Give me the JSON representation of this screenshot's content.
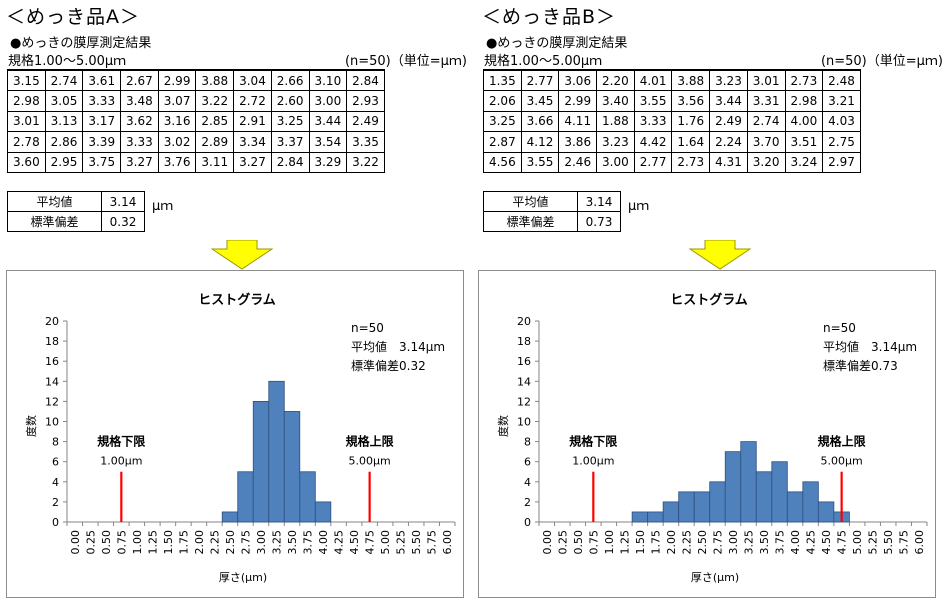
{
  "panels": [
    {
      "id": "a",
      "title": "＜めっき品A＞",
      "subtitle": "●めっきの膜厚測定結果",
      "spec": "規格1.00～5.00μｍ",
      "unit_note": "(n=50)（単位=μｍ)",
      "table": [
        [
          "3.15",
          "2.74",
          "3.61",
          "2.67",
          "2.99",
          "3.88",
          "3.04",
          "2.66",
          "3.10",
          "2.84"
        ],
        [
          "2.98",
          "3.05",
          "3.33",
          "3.48",
          "3.07",
          "3.22",
          "2.72",
          "2.60",
          "3.00",
          "2.93"
        ],
        [
          "3.01",
          "3.13",
          "3.17",
          "3.62",
          "3.16",
          "2.85",
          "2.91",
          "3.25",
          "3.44",
          "2.49"
        ],
        [
          "2.78",
          "2.86",
          "3.39",
          "3.33",
          "3.02",
          "2.89",
          "3.34",
          "3.37",
          "3.54",
          "3.35"
        ],
        [
          "3.60",
          "2.95",
          "3.75",
          "3.27",
          "3.76",
          "3.11",
          "3.27",
          "2.84",
          "3.29",
          "3.22"
        ]
      ],
      "stats": {
        "mean_label": "平均値",
        "mean": "3.14",
        "sd_label": "標準偏差",
        "sd": "0.32",
        "unit": "μｍ"
      },
      "chart_data": {
        "type": "bar",
        "title": "ヒストグラム",
        "xlabel": "厚さ(μm)",
        "ylabel": "度数",
        "categories": [
          "0.00",
          "0.25",
          "0.50",
          "0.75",
          "1.00",
          "1.25",
          "1.50",
          "1.75",
          "2.00",
          "2.25",
          "2.50",
          "2.75",
          "3.00",
          "3.25",
          "3.50",
          "3.75",
          "4.00",
          "4.25",
          "4.50",
          "4.75",
          "5.00",
          "5.25",
          "5.50",
          "5.75",
          "6.00"
        ],
        "values": [
          0,
          0,
          0,
          0,
          0,
          0,
          0,
          0,
          0,
          0,
          1,
          5,
          12,
          14,
          11,
          5,
          2,
          0,
          0,
          0,
          0,
          0,
          0,
          0,
          0
        ],
        "ylim": [
          0,
          20
        ],
        "yticks": [
          0,
          2,
          4,
          6,
          8,
          10,
          12,
          14,
          16,
          18,
          20
        ],
        "grid": false,
        "bar_color": "#4f81bd",
        "limit_color": "#ff0000",
        "info": [
          "n=50",
          "平均値　3.14μm",
          "標準偏差0.32"
        ],
        "lower_limit": {
          "label": "規格下限",
          "value_label": "1.00μm",
          "value": 1.0
        },
        "upper_limit": {
          "label": "規格上限",
          "value_label": "5.00μm",
          "value": 5.0
        }
      }
    },
    {
      "id": "b",
      "title": "＜めっき品B＞",
      "subtitle": "●めっきの膜厚測定結果",
      "spec": "規格1.00～5.00μｍ",
      "unit_note": "(n=50)（単位=μｍ)",
      "table": [
        [
          "1.35",
          "2.77",
          "3.06",
          "2.20",
          "4.01",
          "3.88",
          "3.23",
          "3.01",
          "2.73",
          "2.48"
        ],
        [
          "2.06",
          "3.45",
          "2.99",
          "3.40",
          "3.55",
          "3.56",
          "3.44",
          "3.31",
          "2.98",
          "3.21"
        ],
        [
          "3.25",
          "3.66",
          "4.11",
          "1.88",
          "3.33",
          "1.76",
          "2.49",
          "2.74",
          "4.00",
          "4.03"
        ],
        [
          "2.87",
          "4.12",
          "3.86",
          "3.23",
          "4.42",
          "1.64",
          "2.24",
          "3.70",
          "3.51",
          "2.75"
        ],
        [
          "4.56",
          "3.55",
          "2.46",
          "3.00",
          "2.77",
          "2.73",
          "4.31",
          "3.20",
          "3.24",
          "2.97"
        ]
      ],
      "stats": {
        "mean_label": "平均値",
        "mean": "3.14",
        "sd_label": "標準偏差",
        "sd": "0.73",
        "unit": "μｍ"
      },
      "chart_data": {
        "type": "bar",
        "title": "ヒストグラム",
        "xlabel": "厚さ(μm)",
        "ylabel": "度数",
        "categories": [
          "0.00",
          "0.25",
          "0.50",
          "0.75",
          "1.00",
          "1.25",
          "1.50",
          "1.75",
          "2.00",
          "2.25",
          "2.50",
          "2.75",
          "3.00",
          "3.25",
          "3.50",
          "3.75",
          "4.00",
          "4.25",
          "4.50",
          "4.75",
          "5.00",
          "5.25",
          "5.50",
          "5.75",
          "6.00"
        ],
        "values": [
          0,
          0,
          0,
          0,
          0,
          0,
          1,
          1,
          2,
          3,
          3,
          4,
          7,
          8,
          5,
          6,
          3,
          4,
          2,
          1,
          0,
          0,
          0,
          0,
          0
        ],
        "ylim": [
          0,
          20
        ],
        "yticks": [
          0,
          2,
          4,
          6,
          8,
          10,
          12,
          14,
          16,
          18,
          20
        ],
        "grid": false,
        "bar_color": "#4f81bd",
        "limit_color": "#ff0000",
        "info": [
          "n=50",
          "平均値　3.14μm",
          "標準偏差0.73"
        ],
        "lower_limit": {
          "label": "規格下限",
          "value_label": "1.00μm",
          "value": 1.0
        },
        "upper_limit": {
          "label": "規格上限",
          "value_label": "5.00μm",
          "value": 5.0
        }
      }
    }
  ]
}
